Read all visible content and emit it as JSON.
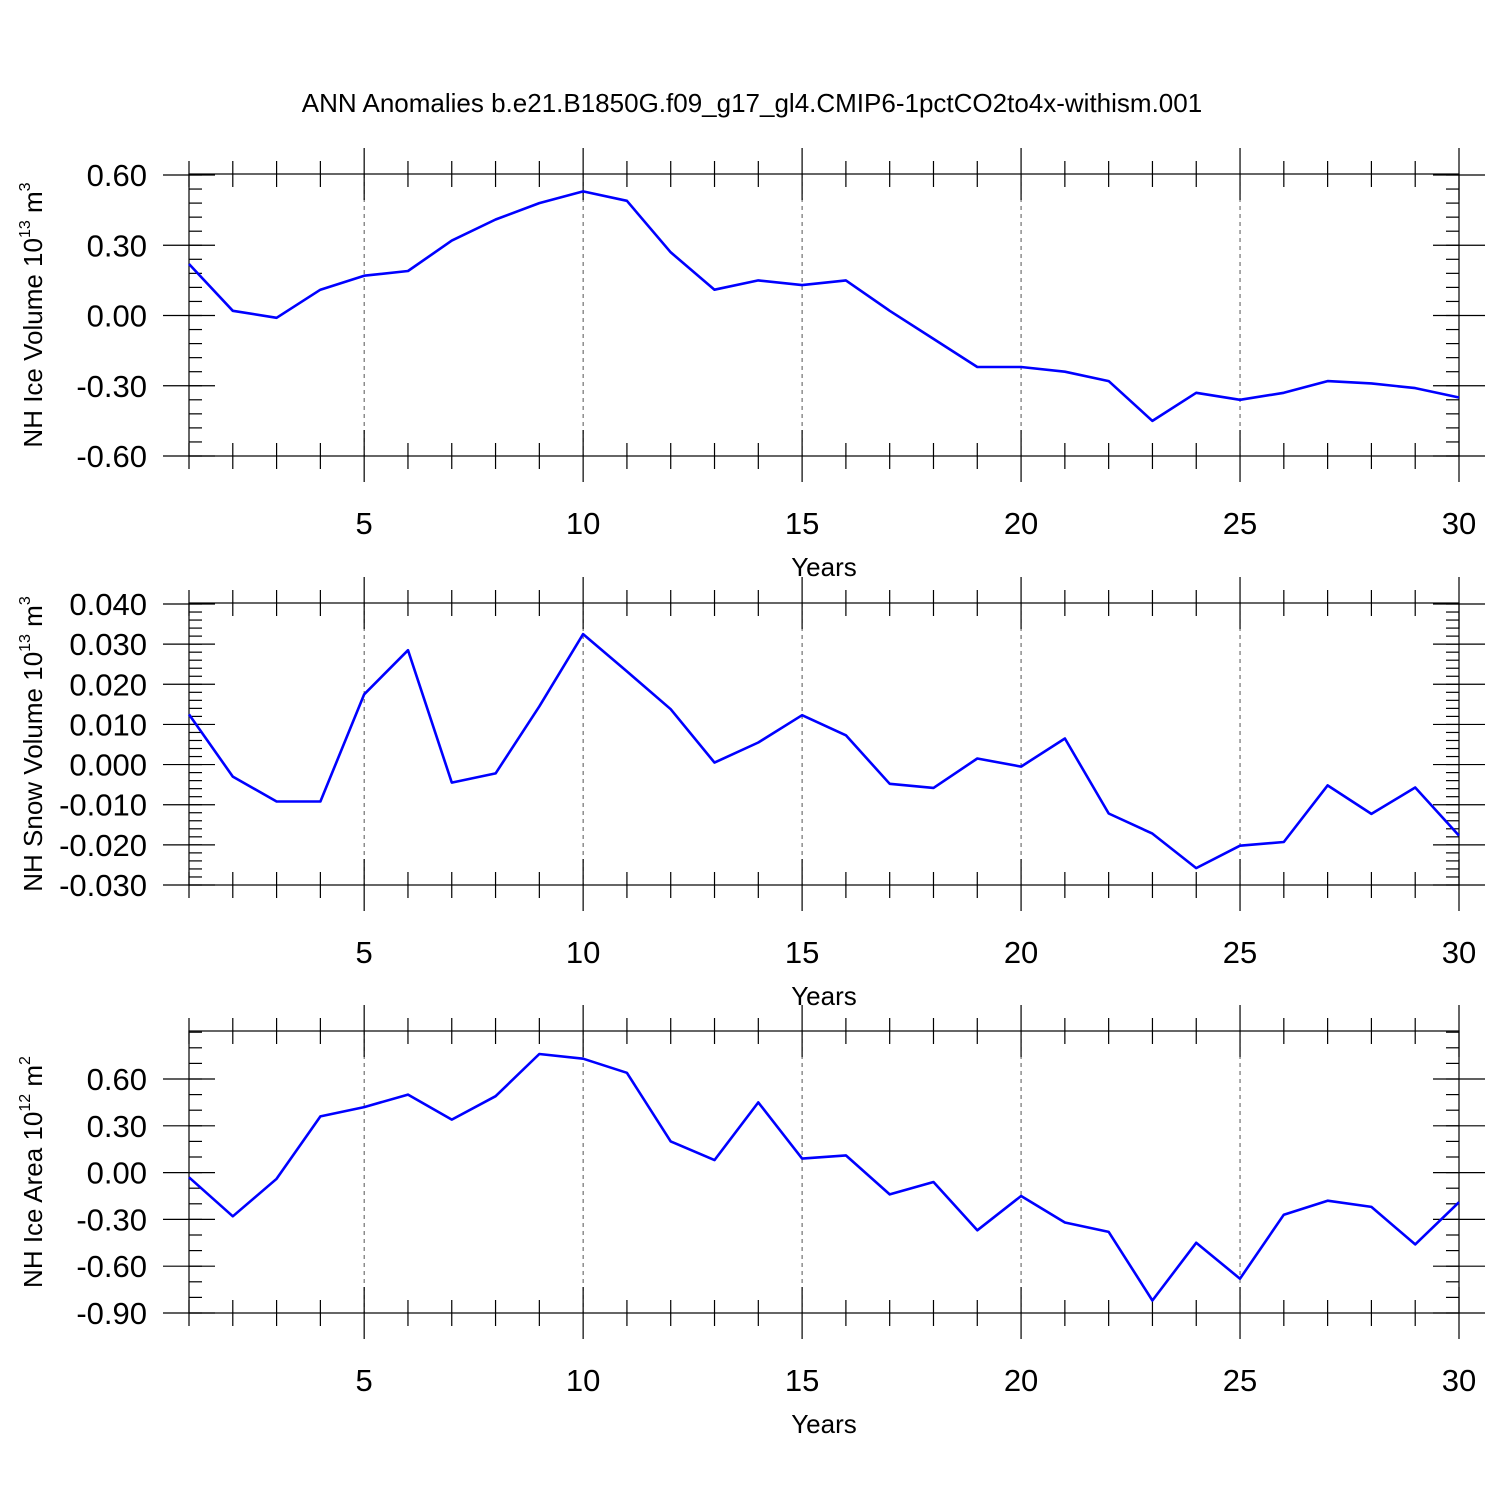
{
  "title": "ANN Anomalies b.e21.B1850G.f09_g17_gl4.CMIP6-1pctCO2to4x-withism.001",
  "chart_data": [
    {
      "type": "line",
      "ylabel": "NH Ice Volume 10",
      "ylabel_exp": "13",
      "ylabel_unit": " m",
      "ylabel_unit_exp": "3",
      "xlabel": "Years",
      "xlim": [
        1,
        30
      ],
      "ylim": [
        -0.6,
        0.6
      ],
      "yticks": [
        0.6,
        0.3,
        0.0,
        -0.3,
        -0.6
      ],
      "ytick_labels": [
        "0.60",
        "0.30",
        "0.00",
        "-0.30",
        "-0.60"
      ],
      "xticks": [
        5,
        10,
        15,
        20,
        25,
        30
      ],
      "xtick_labels": [
        "5",
        "10",
        "15",
        "20",
        "25",
        "30"
      ],
      "y_minor_step": 0.06,
      "grid_x": [
        5,
        10,
        15,
        20,
        25
      ],
      "color": "#0000ff",
      "x": [
        1,
        2,
        3,
        4,
        5,
        6,
        7,
        8,
        9,
        10,
        11,
        12,
        13,
        14,
        15,
        16,
        17,
        18,
        19,
        20,
        21,
        22,
        23,
        24,
        25,
        26,
        27,
        28,
        29,
        30
      ],
      "values": [
        0.22,
        0.02,
        -0.01,
        0.11,
        0.17,
        0.19,
        0.32,
        0.41,
        0.48,
        0.53,
        0.49,
        0.27,
        0.11,
        0.15,
        0.13,
        0.15,
        0.02,
        -0.1,
        -0.22,
        -0.22,
        -0.24,
        -0.28,
        -0.45,
        -0.33,
        -0.36,
        -0.33,
        -0.28,
        -0.29,
        -0.31,
        -0.35
      ]
    },
    {
      "type": "line",
      "ylabel": "NH Snow Volume 10",
      "ylabel_exp": "13",
      "ylabel_unit": " m",
      "ylabel_unit_exp": "3",
      "xlabel": "Years",
      "xlim": [
        1,
        30
      ],
      "ylim": [
        -0.03,
        0.04
      ],
      "yticks": [
        0.04,
        0.03,
        0.02,
        0.01,
        0.0,
        -0.01,
        -0.02,
        -0.03
      ],
      "ytick_labels": [
        "0.040",
        "0.030",
        "0.020",
        "0.010",
        "0.000",
        "-0.010",
        "-0.020",
        "-0.030"
      ],
      "xticks": [
        5,
        10,
        15,
        20,
        25,
        30
      ],
      "xtick_labels": [
        "5",
        "10",
        "15",
        "20",
        "25",
        "30"
      ],
      "y_minor_step": 0.002,
      "grid_x": [
        5,
        10,
        15,
        20,
        25
      ],
      "color": "#0000ff",
      "x": [
        1,
        2,
        3,
        4,
        5,
        6,
        7,
        8,
        9,
        10,
        11,
        12,
        13,
        14,
        15,
        16,
        17,
        18,
        19,
        20,
        21,
        22,
        23,
        24,
        25,
        26,
        27,
        28,
        29,
        30
      ],
      "values": [
        0.0125,
        -0.003,
        -0.0092,
        -0.0092,
        0.0175,
        0.0285,
        -0.0045,
        -0.0022,
        0.0145,
        0.0325,
        0.0232,
        0.0138,
        0.0005,
        0.0055,
        0.0123,
        0.0073,
        -0.0048,
        -0.0058,
        0.0015,
        -0.0005,
        0.0065,
        -0.0122,
        -0.0172,
        -0.0258,
        -0.0202,
        -0.0193,
        -0.0052,
        -0.0123,
        -0.0057,
        -0.0177
      ]
    },
    {
      "type": "line",
      "ylabel": "NH Ice Area 10",
      "ylabel_exp": "12",
      "ylabel_unit": " m",
      "ylabel_unit_exp": "2",
      "xlabel": "Years",
      "xlim": [
        1,
        30
      ],
      "ylim": [
        -0.9,
        0.9
      ],
      "yticks": [
        0.6,
        0.3,
        0.0,
        -0.3,
        -0.6,
        -0.9
      ],
      "ytick_labels": [
        "0.60",
        "0.30",
        "0.00",
        "-0.30",
        "-0.60",
        "-0.90"
      ],
      "xticks": [
        5,
        10,
        15,
        20,
        25,
        30
      ],
      "xtick_labels": [
        "5",
        "10",
        "15",
        "20",
        "25",
        "30"
      ],
      "y_minor_step": 0.1,
      "grid_x": [
        5,
        10,
        15,
        20,
        25
      ],
      "color": "#0000ff",
      "x": [
        1,
        2,
        3,
        4,
        5,
        6,
        7,
        8,
        9,
        10,
        11,
        12,
        13,
        14,
        15,
        16,
        17,
        18,
        19,
        20,
        21,
        22,
        23,
        24,
        25,
        26,
        27,
        28,
        29,
        30
      ],
      "values": [
        -0.03,
        -0.28,
        -0.04,
        0.36,
        0.42,
        0.5,
        0.34,
        0.49,
        0.76,
        0.73,
        0.64,
        0.2,
        0.08,
        0.45,
        0.09,
        0.11,
        -0.14,
        -0.06,
        -0.37,
        -0.15,
        -0.32,
        -0.38,
        -0.82,
        -0.45,
        -0.68,
        -0.27,
        -0.18,
        -0.22,
        -0.46,
        -0.19
      ]
    }
  ]
}
